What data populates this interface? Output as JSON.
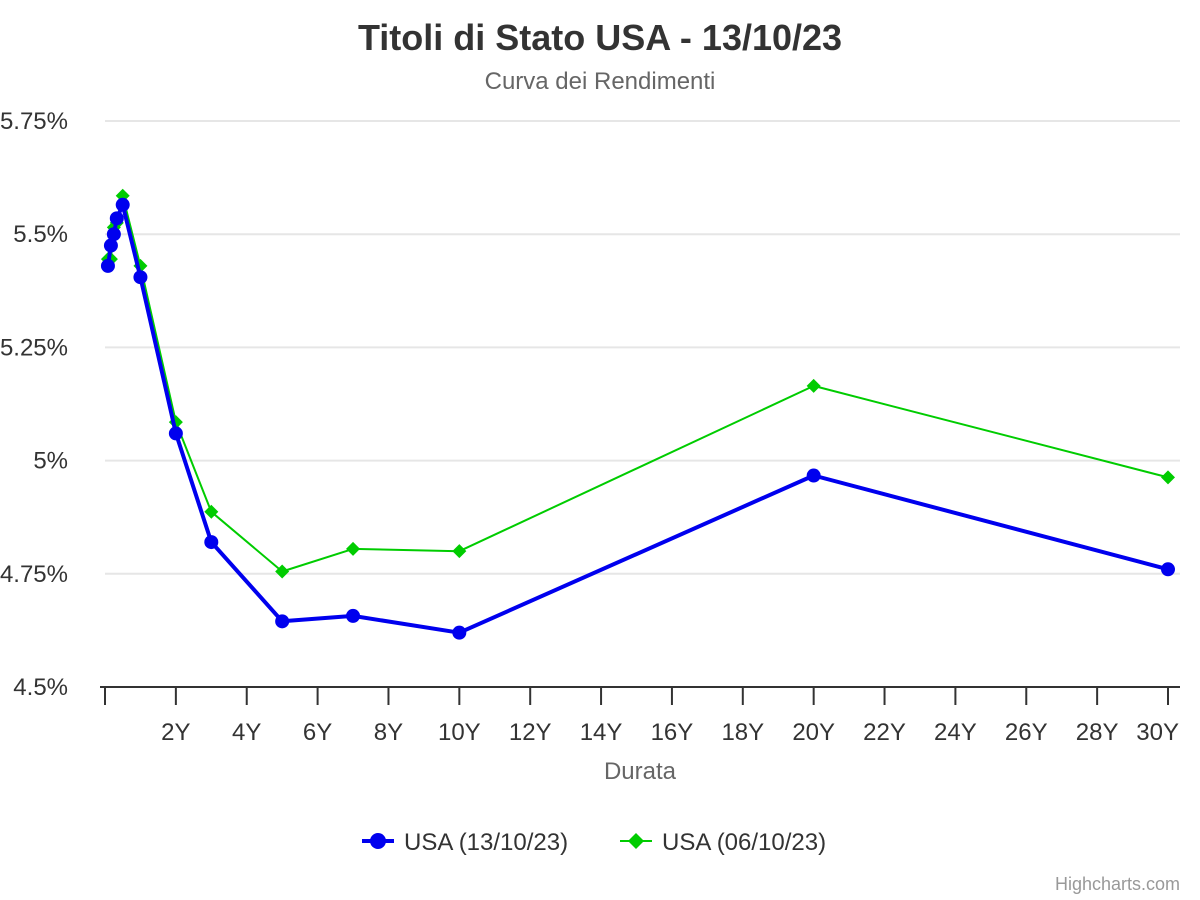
{
  "chart_data": {
    "type": "line",
    "title": "Titoli di Stato USA - 13/10/23",
    "subtitle": "Curva dei Rendimenti",
    "xlabel": "Durata",
    "ylabel": "",
    "xlim": [
      0,
      30
    ],
    "ylim": [
      4.5,
      5.75
    ],
    "y_ticks": [
      4.5,
      4.75,
      5,
      5.25,
      5.5,
      5.75
    ],
    "y_tick_labels": [
      "4.5%",
      "4.75%",
      "5%",
      "5.25%",
      "5.5%",
      "5.75%"
    ],
    "x_ticks": [
      2,
      4,
      6,
      8,
      10,
      12,
      14,
      16,
      18,
      20,
      22,
      24,
      26,
      28,
      30
    ],
    "x_tick_labels": [
      "2Y",
      "4Y",
      "6Y",
      "8Y",
      "10Y",
      "12Y",
      "14Y",
      "16Y",
      "18Y",
      "20Y",
      "22Y",
      "24Y",
      "26Y",
      "28Y",
      "30Y"
    ],
    "grid": true,
    "legend": "bottom-center",
    "series": [
      {
        "name": "USA (13/10/23)",
        "color": "#0000ee",
        "marker": "circle",
        "points": [
          [
            0.083,
            5.43
          ],
          [
            0.167,
            5.475
          ],
          [
            0.25,
            5.5
          ],
          [
            0.333,
            5.535
          ],
          [
            0.5,
            5.565
          ],
          [
            1,
            5.405
          ],
          [
            2,
            5.06
          ],
          [
            3,
            4.82
          ],
          [
            5,
            4.645
          ],
          [
            7,
            4.657
          ],
          [
            10,
            4.62
          ],
          [
            20,
            4.967
          ],
          [
            30,
            4.76
          ]
        ]
      },
      {
        "name": "USA (06/10/23)",
        "color": "#00cc00",
        "marker": "diamond",
        "points": [
          [
            0.083,
            5.445
          ],
          [
            0.167,
            5.445
          ],
          [
            0.25,
            5.515
          ],
          [
            0.333,
            5.525
          ],
          [
            0.5,
            5.585
          ],
          [
            1,
            5.43
          ],
          [
            2,
            5.085
          ],
          [
            3,
            4.887
          ],
          [
            5,
            4.755
          ],
          [
            7,
            4.805
          ],
          [
            10,
            4.8
          ],
          [
            20,
            5.165
          ],
          [
            30,
            4.963
          ]
        ]
      }
    ]
  },
  "credits": "Highcharts.com"
}
